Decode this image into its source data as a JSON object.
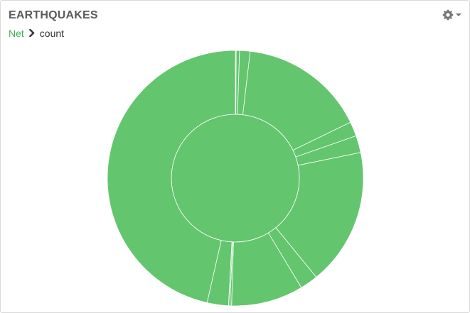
{
  "panel": {
    "title": "EARTHQUAKES",
    "settings_icon": "gear-icon"
  },
  "breadcrumb": {
    "root": "Net",
    "separator_icon": "chevron-right-icon",
    "current": "count"
  },
  "colors": {
    "slice_fill": "#63c56e",
    "slice_stroke": "#ffffff",
    "link": "#3fae5a",
    "title": "#5b5b5b"
  },
  "chart_data": {
    "type": "sunburst",
    "inner_ring": {
      "values": [
        1
      ]
    },
    "outer_ring": {
      "start_angle_deg": 0,
      "values": [
        0.4,
        1.5,
        4.8,
        57.5,
        6.6,
        7.8,
        62.5,
        8.2,
        32.8,
        0.8,
        0.6,
        9.7,
        167.6
      ]
    }
  }
}
